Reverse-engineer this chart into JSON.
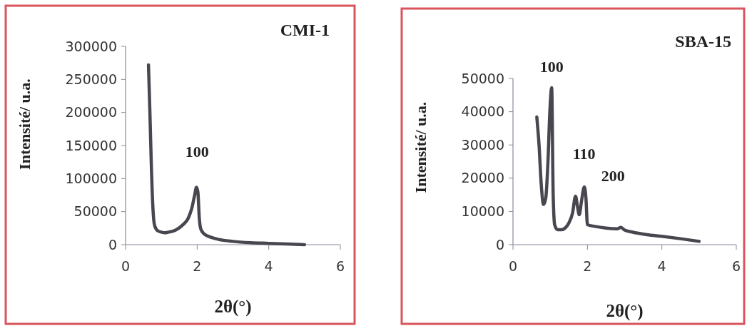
{
  "chart_data": [
    {
      "type": "line",
      "title": "CMI-1",
      "xlabel": "2θ(°)",
      "ylabel": "Intensité/ u.a.",
      "xlim": [
        0,
        6
      ],
      "xticks": [
        0,
        2,
        4,
        6
      ],
      "ylim": [
        0,
        300000
      ],
      "yticks": [
        0,
        50000,
        100000,
        150000,
        200000,
        250000,
        300000
      ],
      "grid": false,
      "marker": "none",
      "line_style": "solid",
      "series": [
        {
          "color": "#4a4650",
          "x": [
            0.64,
            0.68,
            0.72,
            0.76,
            0.8,
            0.85,
            0.9,
            1.0,
            1.1,
            1.2,
            1.4,
            1.6,
            1.75,
            1.85,
            1.93,
            1.98,
            2.02,
            2.06,
            2.1,
            2.2,
            2.4,
            2.6,
            3.0,
            3.5,
            4.0,
            4.5,
            5.0
          ],
          "values": [
            272000,
            200000,
            120000,
            60000,
            32000,
            24000,
            21000,
            19000,
            18000,
            19000,
            22000,
            30000,
            40000,
            55000,
            75000,
            87000,
            80000,
            40000,
            24000,
            16000,
            11000,
            8000,
            5000,
            3000,
            2000,
            1000,
            0
          ]
        }
      ],
      "annotations": [
        {
          "text": "100",
          "x": 2.0,
          "y": 87000
        }
      ]
    },
    {
      "type": "line",
      "title": "SBA-15",
      "xlabel": "2θ(°)",
      "ylabel": "Intensité/ u.a.",
      "xlim": [
        0,
        6
      ],
      "xticks": [
        0,
        2,
        4,
        6
      ],
      "ylim": [
        0,
        50000
      ],
      "yticks": [
        0,
        10000,
        20000,
        30000,
        40000,
        50000
      ],
      "grid": false,
      "marker": "none",
      "line_style": "solid",
      "series": [
        {
          "color": "#4a4650",
          "x": [
            0.64,
            0.7,
            0.76,
            0.82,
            0.88,
            0.94,
            0.99,
            1.04,
            1.08,
            1.12,
            1.2,
            1.3,
            1.4,
            1.5,
            1.6,
            1.68,
            1.74,
            1.78,
            1.84,
            1.9,
            1.92,
            1.96,
            2.0,
            2.2,
            2.5,
            2.8,
            2.9,
            3.0,
            3.2,
            3.6,
            4.0,
            4.5,
            5.0
          ],
          "values": [
            38400,
            30000,
            18000,
            12100,
            14000,
            25000,
            40000,
            47200,
            15000,
            6000,
            4500,
            4500,
            5000,
            6500,
            9500,
            14600,
            11000,
            9000,
            13000,
            17000,
            17400,
            14000,
            6000,
            5500,
            5000,
            4800,
            5200,
            4400,
            3800,
            3000,
            2500,
            1800,
            1000
          ]
        }
      ],
      "annotations": [
        {
          "text": "100",
          "x": 1.04,
          "y": 47200
        },
        {
          "text": "110",
          "x": 1.68,
          "y": 14600
        },
        {
          "text": "200",
          "x": 1.92,
          "y": 17400
        }
      ]
    }
  ]
}
